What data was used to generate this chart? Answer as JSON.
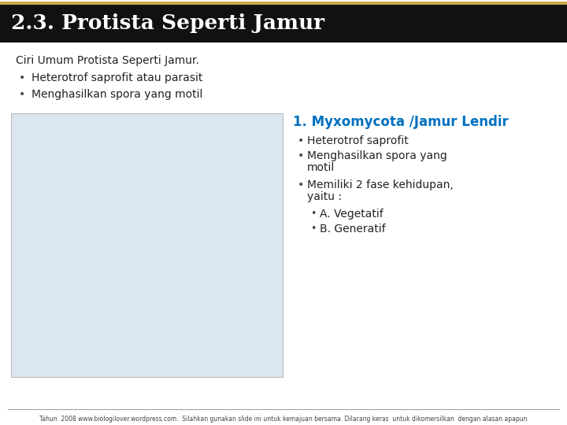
{
  "title": "2.3. Protista Seperti Jamur",
  "title_bar_color": "#111111",
  "title_gold_line_color": "#c8a84b",
  "title_text_color": "#ffffff",
  "bg_color": "#ffffff",
  "intro_text": "Ciri Umum Protista Seperti Jamur.",
  "intro_bullets": [
    "Heterotrof saprofit atau parasit",
    "Menghasilkan spora yang motil"
  ],
  "section_title": "1. Myxomycota /Jamur Lendir",
  "section_title_color": "#0070c0",
  "section_bullets_line1": "Heterotrof saprofit",
  "section_bullets_line2a": "Menghasilkan spora yang",
  "section_bullets_line2b": "motil",
  "section_bullets_line3a": "Memiliki 2 fase kehidupan,",
  "section_bullets_line3b": "yaitu :",
  "sub_bullets": [
    "A. Vegetatif",
    "B. Generatif"
  ],
  "footer_text": "Tahun  2008 www.biologilover.wordpress.com.  Silahkan gunakan slide ini untuk kemajuan bersama. Dilarang keras  untuk dikomersilkan  dengan alasan apapun",
  "footer_color": "#444444",
  "image_area_color": "#dce6f0",
  "image_area_border": "#bbbbbb",
  "title_bar_height": 50,
  "title_fontsize": 19,
  "intro_fontsize": 10,
  "bullet_fontsize": 10,
  "section_title_fontsize": 12,
  "section_bullet_fontsize": 10,
  "footer_fontsize": 5.5
}
